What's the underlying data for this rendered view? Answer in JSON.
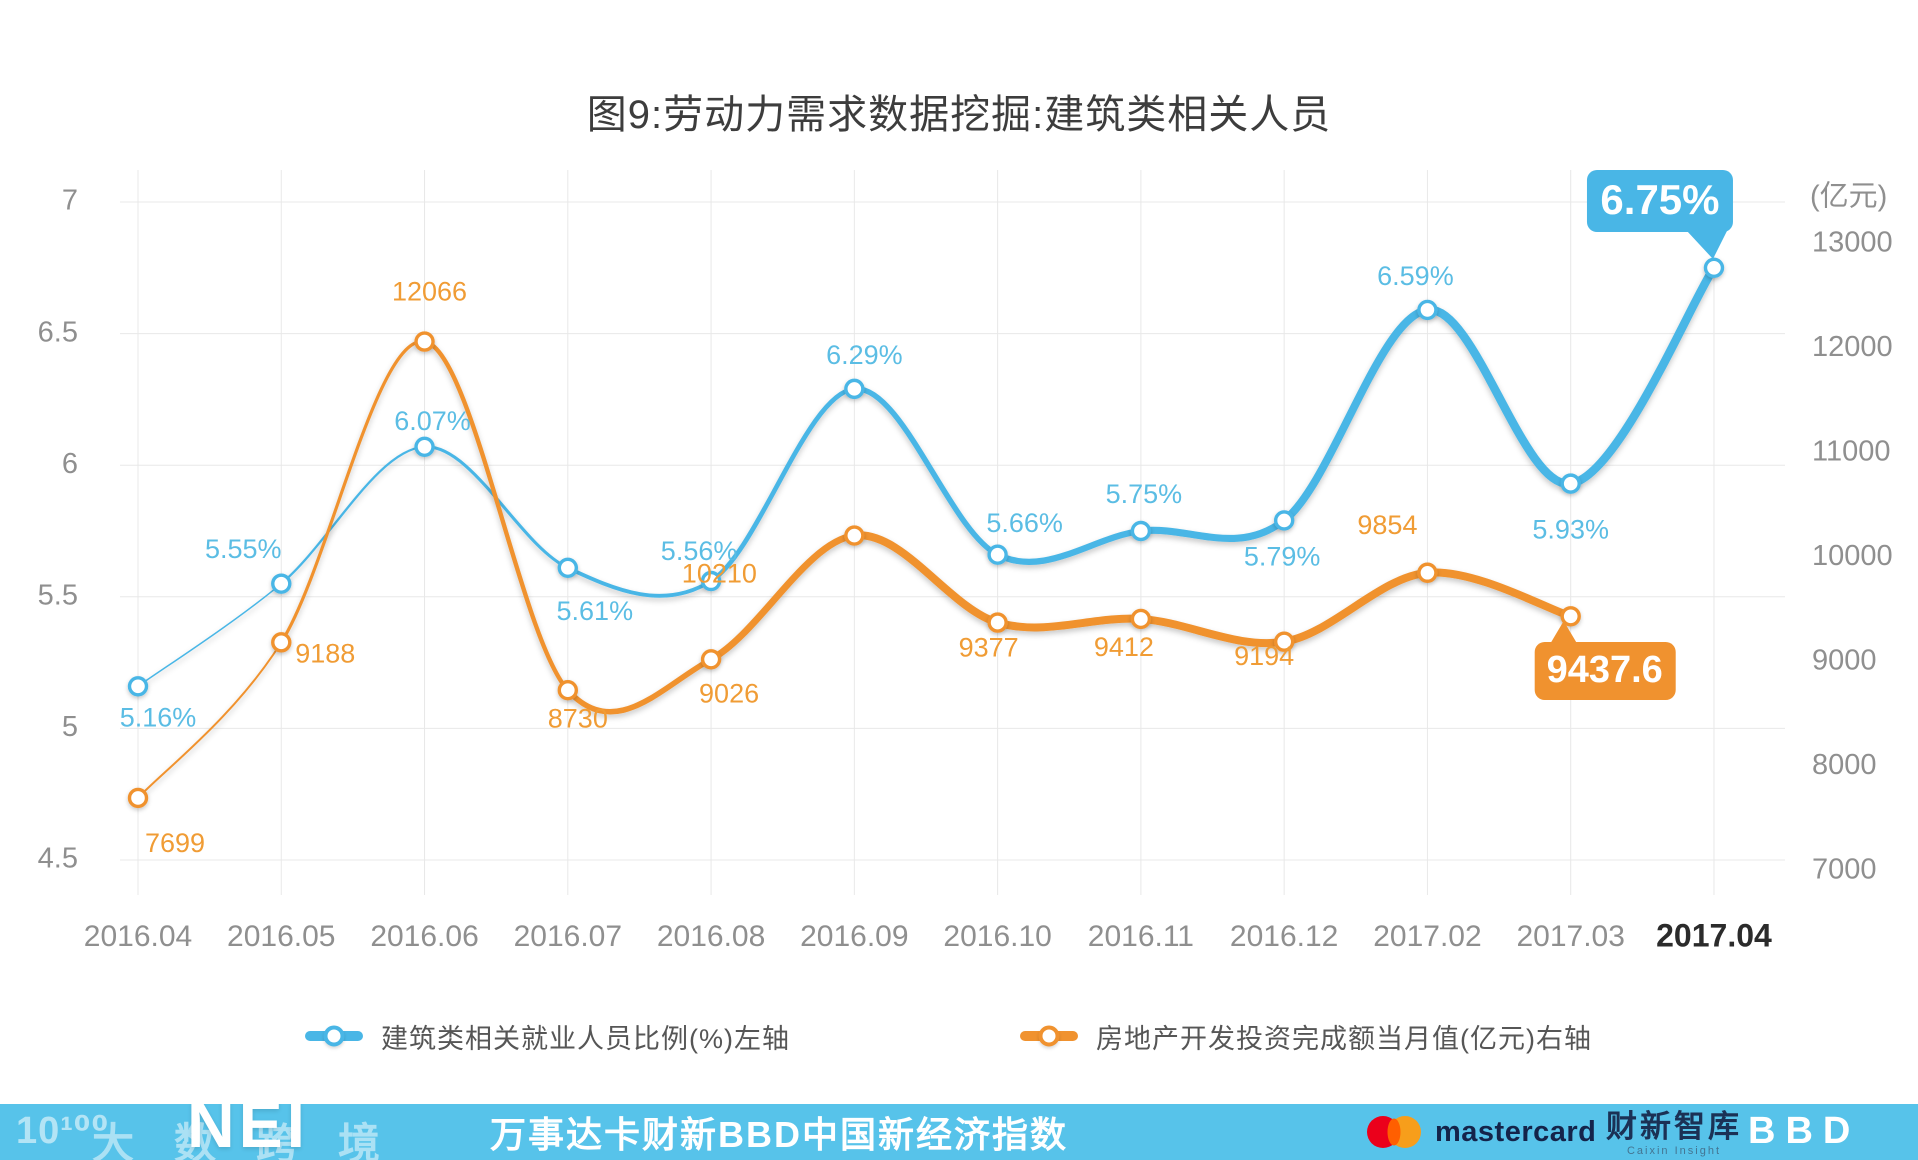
{
  "title": "图9:劳动力需求数据挖掘:建筑类相关人员",
  "chart_data": {
    "type": "line",
    "title": "图9:劳动力需求数据挖掘:建筑类相关人员",
    "categories": [
      "2016.04",
      "2016.05",
      "2016.06",
      "2016.07",
      "2016.08",
      "2016.09",
      "2016.10",
      "2016.11",
      "2016.12",
      "2017.02",
      "2017.03",
      "2017.04"
    ],
    "left_axis": {
      "min": 4.5,
      "max": 7,
      "ticks": [
        "7",
        "6.5",
        "6",
        "5.5",
        "5",
        "4.5"
      ]
    },
    "right_axis": {
      "min": 7000,
      "max": 13000,
      "unit": "(亿元)",
      "ticks": [
        "13000",
        "12000",
        "11000",
        "10000",
        "9000",
        "8000",
        "7000"
      ]
    },
    "grid": true,
    "legend_position": "bottom",
    "series": [
      {
        "name": "建筑类相关就业人员比例(%)左轴",
        "axis": "left",
        "color": "#49b6e6",
        "label_color": "#5bbde4",
        "values": [
          5.16,
          5.55,
          6.07,
          5.61,
          5.56,
          6.29,
          5.66,
          5.75,
          5.79,
          6.59,
          5.93,
          6.75
        ],
        "labels": [
          "5.16%",
          "5.55%",
          "6.07%",
          "5.61%",
          "5.56%",
          "6.29%",
          "5.66%",
          "5.75%",
          "5.79%",
          "6.59%",
          "5.93%",
          "6.75%"
        ]
      },
      {
        "name": "房地产开发投资完成额当月值(亿元)右轴",
        "axis": "right",
        "color": "#f0922f",
        "label_color": "#f09c35",
        "values": [
          7699,
          9188,
          12066,
          8730,
          9026,
          10210,
          9377,
          9412,
          9194,
          9854,
          9437.6
        ],
        "labels": [
          "7699",
          "9188",
          "12066",
          "8730",
          "9026",
          "10210",
          "9377",
          "9412",
          "9194",
          "9854",
          "9437.6"
        ]
      }
    ],
    "highlights": {
      "blue": {
        "category": "2017.04",
        "label": "6.75%"
      },
      "orange": {
        "category": "2017.03",
        "label": "9437.6"
      }
    }
  },
  "legend": {
    "items": [
      {
        "label": "建筑类相关就业人员比例(%)左轴",
        "color": "#49b6e6"
      },
      {
        "label": "房地产开发投资完成额当月值(亿元)右轴",
        "color": "#f0922f"
      }
    ]
  },
  "footer": {
    "bar_color": "#57c3ea",
    "watermark": {
      "icon_text": "10¹⁰⁰",
      "text": "大数跨境",
      "overlay_text": "NEI"
    },
    "headline": "万事达卡财新BBD中国新经济指数",
    "logos": {
      "mastercard": {
        "label": "mastercard"
      },
      "caixin": {
        "label": "财新智库",
        "sublabel": "Caixin Insight"
      },
      "bbd": {
        "label": "BBD"
      }
    }
  }
}
